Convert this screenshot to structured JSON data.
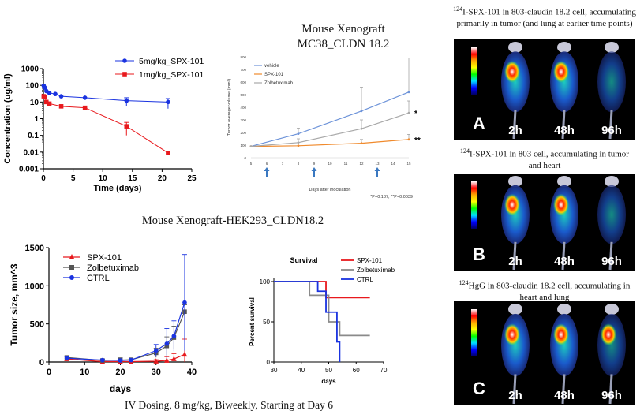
{
  "colors": {
    "red": "#e8191d",
    "blue": "#1a33e0",
    "orange": "#f08a2c",
    "grey": "#9a9a9a",
    "dark_grey": "#555555"
  },
  "titles": {
    "mc38_line1": "Mouse Xenograft",
    "mc38_line2": "MC38_CLDN 18.2",
    "hek_title": "Mouse Xenograft-HEK293_CLDN18.2",
    "bottom_caption": "IV Dosing, 8 mg/kg, Biweekly, Starting at Day 6"
  },
  "chart_data": [
    {
      "id": "pk",
      "type": "line",
      "xlabel": "Time (days)",
      "ylabel": "Concentration (ug/ml)",
      "xlim": [
        0,
        25
      ],
      "ylim": [
        0.001,
        1000
      ],
      "yscale": "log",
      "xticks": [
        "0",
        "5",
        "10",
        "15",
        "20",
        "25"
      ],
      "yticks": [
        "0.001",
        "0.01",
        "0.1",
        "1",
        "10",
        "100",
        "1000"
      ],
      "legend_position": "top-right",
      "series": [
        {
          "name": "5mg/kg_SPX-101",
          "color": "#1a33e0",
          "marker": "circle",
          "x": [
            0.05,
            0.25,
            0.5,
            1,
            2,
            3,
            7,
            14,
            21
          ],
          "y": [
            95,
            72,
            45,
            35,
            30,
            22,
            18,
            12,
            10
          ],
          "err": [
            0,
            0,
            0,
            0,
            0,
            0,
            0,
            6,
            6
          ]
        },
        {
          "name": "1mg/kg_SPX-101",
          "color": "#e8191d",
          "marker": "square",
          "x": [
            0.05,
            0.25,
            0.5,
            1,
            3,
            7,
            14,
            21
          ],
          "y": [
            22,
            20,
            10,
            8,
            5.5,
            4.5,
            0.35,
            0.009
          ],
          "err": [
            0,
            0,
            0,
            0,
            0,
            0,
            0.25,
            0
          ]
        }
      ]
    },
    {
      "id": "mc38",
      "type": "line",
      "xlabel": "Days after inoculation",
      "ylabel": "Tumor average volume (mm³)",
      "xlim": [
        5,
        15
      ],
      "ylim": [
        0,
        800
      ],
      "xticks": [
        "5",
        "6",
        "7",
        "8",
        "9",
        "10",
        "11",
        "12",
        "13",
        "14",
        "15"
      ],
      "yticks": [
        "0",
        "100",
        "200",
        "300",
        "400",
        "500",
        "600",
        "700",
        "800"
      ],
      "legend_position": "top-left",
      "dosing_days": [
        6,
        9,
        13
      ],
      "series": [
        {
          "name": "vehicle",
          "color": "#6d93d9",
          "x": [
            5,
            8,
            12,
            15
          ],
          "y": [
            90,
            190,
            370,
            520
          ],
          "err": [
            0,
            45,
            190,
            270
          ]
        },
        {
          "name": "SPX-101",
          "color": "#f08a2c",
          "x": [
            5,
            8,
            12,
            15
          ],
          "y": [
            90,
            95,
            115,
            145
          ],
          "err": [
            0,
            15,
            30,
            40
          ]
        },
        {
          "name": "Zolbetuximab",
          "color": "#a8a8a8",
          "x": [
            5,
            8,
            12,
            15
          ],
          "y": [
            90,
            120,
            230,
            355
          ],
          "err": [
            0,
            30,
            70,
            95
          ]
        }
      ],
      "annotations": [
        {
          "label": "*",
          "series": "Zolbetuximab"
        },
        {
          "label": "**",
          "series": "SPX-101"
        }
      ],
      "footnote": "*P=0.187, **P=0.0039"
    },
    {
      "id": "hek",
      "type": "line",
      "xlabel": "days",
      "ylabel": "Tumor size, mm^3",
      "xlim": [
        0,
        40
      ],
      "ylim": [
        0,
        1500
      ],
      "xticks": [
        "0",
        "10",
        "20",
        "30",
        "40"
      ],
      "yticks": [
        "0",
        "500",
        "1000",
        "1500"
      ],
      "legend_position": "top-left",
      "series": [
        {
          "name": "SPX-101",
          "color": "#e8191d",
          "marker": "triangle",
          "x": [
            5,
            15,
            20,
            23,
            30,
            33,
            35,
            38
          ],
          "y": [
            40,
            5,
            5,
            5,
            10,
            20,
            40,
            100
          ],
          "err": [
            0,
            0,
            0,
            0,
            20,
            50,
            70,
            200
          ]
        },
        {
          "name": "Zolbetuximab",
          "color": "#555555",
          "marker": "square",
          "x": [
            5,
            15,
            20,
            23,
            30,
            33,
            35,
            38
          ],
          "y": [
            60,
            20,
            25,
            30,
            120,
            210,
            320,
            660
          ],
          "err": [
            20,
            10,
            30,
            20,
            60,
            120,
            150,
            90
          ]
        },
        {
          "name": "CTRL",
          "color": "#1a33e0",
          "marker": "circle",
          "x": [
            5,
            15,
            20,
            23,
            30,
            33,
            35,
            38
          ],
          "y": [
            50,
            25,
            20,
            25,
            150,
            240,
            340,
            780
          ],
          "err": [
            20,
            10,
            20,
            20,
            80,
            200,
            200,
            630
          ]
        }
      ]
    },
    {
      "id": "survival",
      "type": "line",
      "title": "Survival",
      "xlabel": "days",
      "ylabel": "Percent survival",
      "xlim": [
        30,
        70
      ],
      "ylim": [
        0,
        100
      ],
      "xticks": [
        "30",
        "40",
        "50",
        "60",
        "70"
      ],
      "yticks": [
        "0",
        "50",
        "100"
      ],
      "legend_position": "top-right",
      "series": [
        {
          "name": "SPX-101",
          "color": "#e8191d",
          "x": [
            30,
            49,
            49,
            65
          ],
          "y": [
            100,
            100,
            80,
            80
          ]
        },
        {
          "name": "Zolbetuximab",
          "color": "#8a8a8a",
          "x": [
            30,
            43,
            43,
            50,
            50,
            54,
            54,
            65
          ],
          "y": [
            100,
            100,
            83,
            83,
            50,
            50,
            33,
            33
          ]
        },
        {
          "name": "CTRL",
          "color": "#1a33e0",
          "x": [
            30,
            46,
            46,
            49,
            49,
            53,
            53,
            54,
            54
          ],
          "y": [
            100,
            100,
            88,
            88,
            62,
            62,
            25,
            25,
            0
          ]
        }
      ]
    }
  ],
  "imaging": {
    "panels": [
      {
        "letter": "A",
        "caption_parts": [
          "124",
          "I-SPX-101 in 803-claudin 18.2 cell, accumulating primarily in tumor (and lung at earlier time points)"
        ]
      },
      {
        "letter": "B",
        "caption_parts": [
          "124",
          "I-SPX-101 in 803 cell, accumulating in tumor and heart"
        ]
      },
      {
        "letter": "C",
        "caption_parts": [
          "124",
          "HgG in 803-claudin 18.2 cell, accumulating in heart and lung"
        ]
      }
    ],
    "timepoints": [
      "2h",
      "48h",
      "96h"
    ]
  }
}
